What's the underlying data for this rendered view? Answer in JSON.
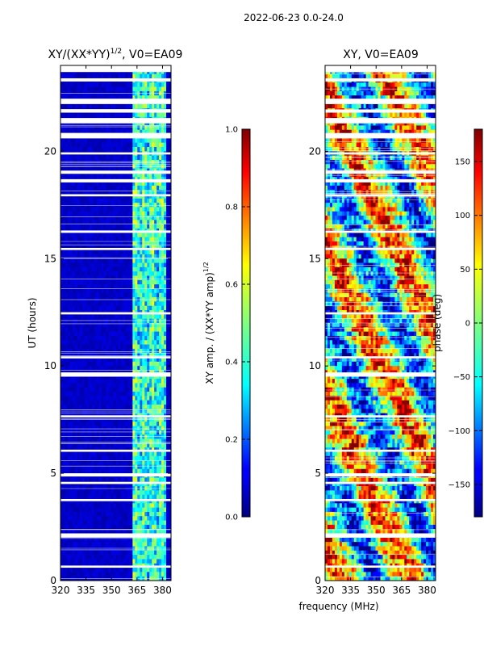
{
  "figure": {
    "suptitle": "2022-06-23 0.0-24.0",
    "xlabel": "frequency (MHz)"
  },
  "chart_data": [
    {
      "type": "heatmap",
      "title": "XY/(XX*YY)",
      "title_exponent": "1/2",
      "title_suffix": ", V0=EA09",
      "xlabel": "",
      "ylabel": "UT (hours)",
      "xlim": [
        320,
        385
      ],
      "ylim": [
        0,
        24
      ],
      "xticks": [
        320,
        335,
        350,
        365,
        380
      ],
      "yticks": [
        0,
        5,
        10,
        15,
        20
      ],
      "colormap": "jet",
      "colorbar": {
        "label": "XY amp. / (XX*YY amp)",
        "label_exponent": "1/2",
        "range": [
          0.0,
          1.0
        ],
        "ticks": [
          "0.0",
          "0.2",
          "0.4",
          "0.6",
          "0.8",
          "1.0"
        ]
      },
      "flagged_hours": [
        [
          23.7,
          24.0
        ],
        [
          23.25,
          23.4
        ],
        [
          22.2,
          22.45
        ],
        [
          21.8,
          21.95
        ],
        [
          21.3,
          21.55
        ],
        [
          20.6,
          20.85
        ],
        [
          19.85,
          19.95
        ],
        [
          18.95,
          19.1
        ],
        [
          18.55,
          18.7
        ],
        [
          17.9,
          18.0
        ],
        [
          16.2,
          16.3
        ],
        [
          15.4,
          15.5
        ],
        [
          12.4,
          12.5
        ],
        [
          10.35,
          10.45
        ],
        [
          9.5,
          9.7
        ],
        [
          7.6,
          7.7
        ],
        [
          6.0,
          6.1
        ],
        [
          4.85,
          5.0
        ],
        [
          4.5,
          4.6
        ],
        [
          3.7,
          3.8
        ],
        [
          2.0,
          2.2
        ],
        [
          0.6,
          0.7
        ]
      ],
      "bright_band_mhz": [
        363,
        382
      ],
      "description_values": {
        "low_freq_amp": 0.05,
        "high_freq_amp": 0.4
      }
    },
    {
      "type": "heatmap",
      "title": "XY, V0=EA09",
      "xlabel": "",
      "ylabel": "",
      "xlim": [
        320,
        385
      ],
      "ylim": [
        0,
        24
      ],
      "xticks": [
        320,
        335,
        350,
        365,
        380
      ],
      "yticks": [
        0,
        5,
        10,
        15,
        20
      ],
      "colormap": "jet",
      "colorbar": {
        "label": "phase (deg)",
        "range": [
          -180,
          180
        ],
        "ticks": [
          "-150",
          "-100",
          "-50",
          "0",
          "50",
          "100",
          "150"
        ]
      },
      "flagged_hours": [
        [
          23.7,
          24.0
        ],
        [
          23.25,
          23.4
        ],
        [
          22.2,
          22.45
        ],
        [
          21.8,
          21.95
        ],
        [
          21.3,
          21.55
        ],
        [
          20.6,
          20.85
        ],
        [
          19.85,
          19.95
        ],
        [
          18.95,
          19.1
        ],
        [
          18.55,
          18.7
        ],
        [
          17.9,
          18.0
        ],
        [
          16.2,
          16.3
        ],
        [
          15.4,
          15.5
        ],
        [
          12.4,
          12.5
        ],
        [
          10.35,
          10.45
        ],
        [
          9.5,
          9.7
        ],
        [
          7.6,
          7.7
        ],
        [
          6.0,
          6.1
        ],
        [
          4.85,
          5.0
        ],
        [
          4.5,
          4.6
        ],
        [
          3.7,
          3.8
        ],
        [
          2.0,
          2.2
        ],
        [
          0.6,
          0.7
        ]
      ]
    }
  ]
}
